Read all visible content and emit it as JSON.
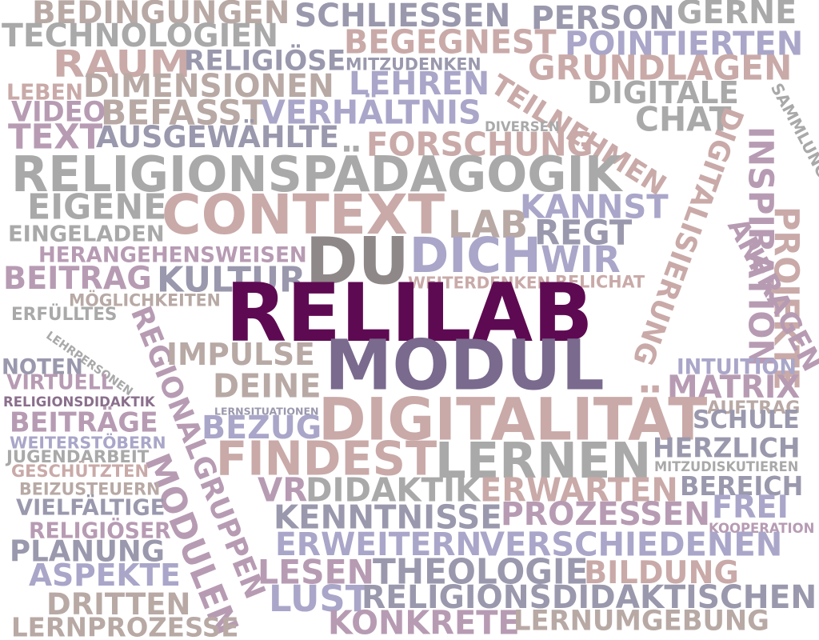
{
  "palette": {
    "grey": "#a9a9a9",
    "taupe": "#b8a9a5",
    "rose": "#c9aaa8",
    "mauve": "#b79bb3",
    "lavender": "#a9a6c9",
    "slate": "#9a98ad",
    "plum": "#8a6f8c",
    "dark_grey": "#8f8888",
    "deep_purple": "#5e0a52",
    "muted_purple": "#7a6a8e"
  },
  "words": [
    {
      "text": "BEDINGUNGEN",
      "color": "taupe"
    },
    {
      "text": "SCHLIESSEN",
      "color": "slate"
    },
    {
      "text": "PERSON",
      "color": "slate"
    },
    {
      "text": "GERNE",
      "color": "grey"
    },
    {
      "text": "TECHNOLOGIEN",
      "color": "grey"
    },
    {
      "text": "BEGEGNEST",
      "color": "rose"
    },
    {
      "text": "POINTIERTEN",
      "color": "lavender"
    },
    {
      "text": "RAUM",
      "color": "rose"
    },
    {
      "text": "RELIGIÖSE",
      "color": "slate"
    },
    {
      "text": "MITZUDENKEN",
      "color": "slate"
    },
    {
      "text": "GRUNDLAGEN",
      "color": "rose"
    },
    {
      "text": "DIMENSIONEN",
      "color": "taupe"
    },
    {
      "text": "LEHREN",
      "color": "lavender"
    },
    {
      "text": "LEBEN",
      "color": "rose"
    },
    {
      "text": "TEILNEHMEN",
      "color": "rose"
    },
    {
      "text": "DIGITALE",
      "color": "grey"
    },
    {
      "text": "SAMMLUNG",
      "color": "grey"
    },
    {
      "text": "VIDEO",
      "color": "mauve"
    },
    {
      "text": "BEFASST",
      "color": "taupe"
    },
    {
      "text": "VERHÄLTNIS",
      "color": "lavender"
    },
    {
      "text": "CHAT",
      "color": "grey"
    },
    {
      "text": "DIVERSEN",
      "color": "grey"
    },
    {
      "text": "TEXT",
      "color": "mauve"
    },
    {
      "text": "AUSGEWÄHLTE",
      "color": "slate"
    },
    {
      "text": "FORSCHUNG",
      "color": "rose"
    },
    {
      "text": "INSPIRATION",
      "color": "mauve"
    },
    {
      "text": "RELIGIONSPÄDAGOGIK",
      "color": "grey"
    },
    {
      "text": "DIGITALISIERUNG",
      "color": "rose"
    },
    {
      "text": "EIGENE",
      "color": "grey"
    },
    {
      "text": "CONTEXT",
      "color": "rose"
    },
    {
      "text": "KANNST",
      "color": "lavender"
    },
    {
      "text": "PROJEKTE",
      "color": "rose"
    },
    {
      "text": "EINGELADEN",
      "color": "grey"
    },
    {
      "text": "LAB",
      "color": "taupe"
    },
    {
      "text": "REGT",
      "color": "slate"
    },
    {
      "text": "ANFRAGEN",
      "color": "mauve"
    },
    {
      "text": "HERANGEHENSWEISEN",
      "color": "mauve"
    },
    {
      "text": "DU",
      "color": "dark_grey"
    },
    {
      "text": "DICH",
      "color": "lavender"
    },
    {
      "text": "WIR",
      "color": "lavender"
    },
    {
      "text": "BEITRAG",
      "color": "mauve"
    },
    {
      "text": "KULTUR",
      "color": "slate"
    },
    {
      "text": "WEITERDENKEN",
      "color": "rose"
    },
    {
      "text": "RELICHAT",
      "color": "rose"
    },
    {
      "text": "MÖGLICHKEITEN",
      "color": "taupe"
    },
    {
      "text": "RELILAB",
      "color": "deep_purple"
    },
    {
      "text": "ERFÜLLTES",
      "color": "grey"
    },
    {
      "text": "LEHRPERSONEN",
      "color": "grey"
    },
    {
      "text": "REGIONALGRUPPEN",
      "color": "mauve"
    },
    {
      "text": "MODULEN",
      "color": "mauve"
    },
    {
      "text": "IMPULSE",
      "color": "taupe"
    },
    {
      "text": "MODUL",
      "color": "muted_purple"
    },
    {
      "text": "INTUITION",
      "color": "lavender"
    },
    {
      "text": "NOTEN",
      "color": "slate"
    },
    {
      "text": "VIRTUELL",
      "color": "mauve"
    },
    {
      "text": "DEINE",
      "color": "taupe"
    },
    {
      "text": "MATRIX",
      "color": "mauve"
    },
    {
      "text": "RELIGIONSDIDAKTIK",
      "color": "plum"
    },
    {
      "text": "LERNSITUATIONEN",
      "color": "slate"
    },
    {
      "text": "AUFTRAG",
      "color": "taupe"
    },
    {
      "text": "BEITRÄGE",
      "color": "mauve"
    },
    {
      "text": "DIGITALITÄT",
      "color": "rose"
    },
    {
      "text": "SCHULE",
      "color": "slate"
    },
    {
      "text": "BEZUG",
      "color": "lavender"
    },
    {
      "text": "WEITERSTÖBERN",
      "color": "lavender"
    },
    {
      "text": "HERZLICH",
      "color": "slate"
    },
    {
      "text": "JUGENDARBEIT",
      "color": "grey"
    },
    {
      "text": "FINDEST",
      "color": "rose"
    },
    {
      "text": "LERNEN",
      "color": "grey"
    },
    {
      "text": "MITZUDISKUTIEREN",
      "color": "grey"
    },
    {
      "text": "GESCHÜTZTEN",
      "color": "rose"
    },
    {
      "text": "BEREICH",
      "color": "slate"
    },
    {
      "text": "BEIZUSTEUERN",
      "color": "taupe"
    },
    {
      "text": "VR",
      "color": "mauve"
    },
    {
      "text": "DIDAKTIK",
      "color": "grey"
    },
    {
      "text": "ERWARTEN",
      "color": "rose"
    },
    {
      "text": "VIELFÄLTIGE",
      "color": "slate"
    },
    {
      "text": "FREI",
      "color": "lavender"
    },
    {
      "text": "KENNTNISSE",
      "color": "slate"
    },
    {
      "text": "PROZESSEN",
      "color": "mauve"
    },
    {
      "text": "RELIGIÖSER",
      "color": "mauve"
    },
    {
      "text": "KOOPERATION",
      "color": "mauve"
    },
    {
      "text": "PLANUNG",
      "color": "slate"
    },
    {
      "text": "ERWEITERN",
      "color": "lavender"
    },
    {
      "text": "VERSCHIEDENEN",
      "color": "lavender"
    },
    {
      "text": "ASPEKTE",
      "color": "lavender"
    },
    {
      "text": "LESEN",
      "color": "mauve"
    },
    {
      "text": "THEOLOGIE",
      "color": "slate"
    },
    {
      "text": "BILDUNG",
      "color": "rose"
    },
    {
      "text": "DRITTEN",
      "color": "taupe"
    },
    {
      "text": "LUST",
      "color": "lavender"
    },
    {
      "text": "RELIGIONSDIDAKTISCHEN",
      "color": "slate"
    },
    {
      "text": "LERNPROZESSE",
      "color": "taupe"
    },
    {
      "text": "KONKRETE",
      "color": "mauve"
    },
    {
      "text": "LERNUMGEBUNG",
      "color": "taupe"
    }
  ]
}
